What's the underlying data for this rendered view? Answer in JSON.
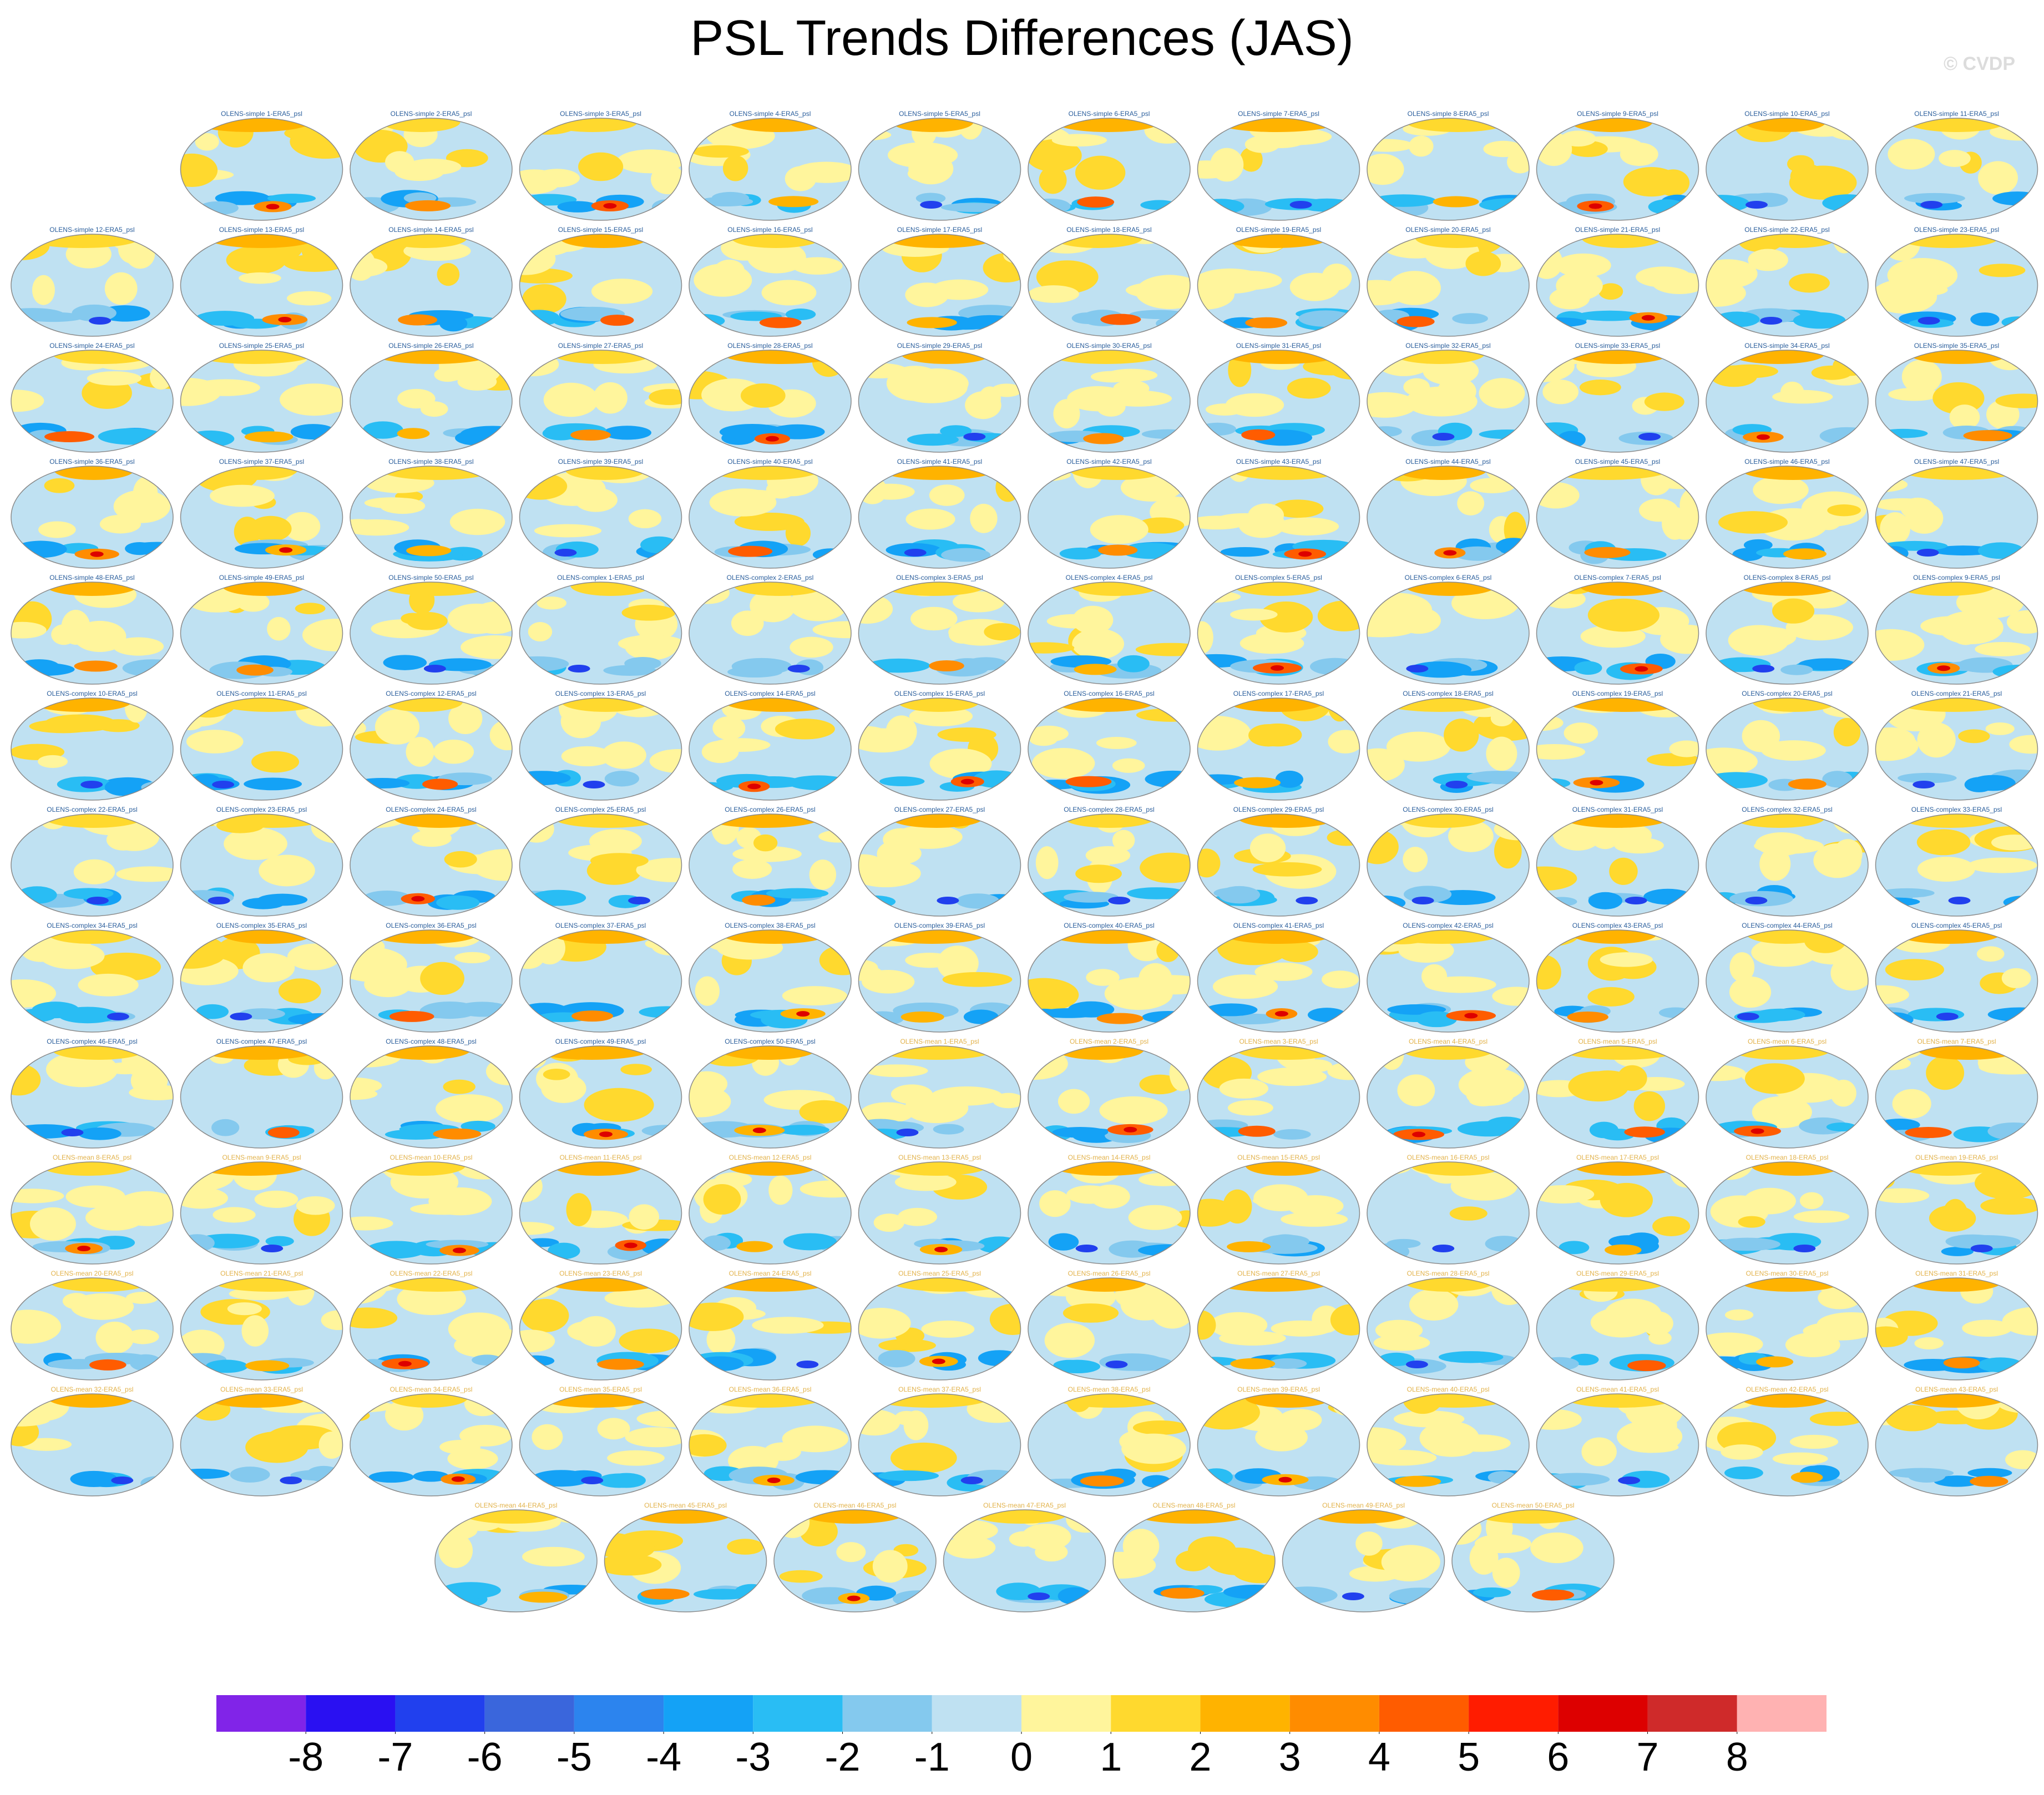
{
  "title": "PSL Trends Differences (JAS)",
  "watermark": "© CVDP",
  "panel_groups": [
    {
      "label_color": "#2a5e9c",
      "labels": [
        "OLENS-simple 1-ERA5_psl",
        "OLENS-simple 2-ERA5_psl",
        "OLENS-simple 3-ERA5_psl",
        "OLENS-simple 4-ERA5_psl",
        "OLENS-simple 5-ERA5_psl",
        "OLENS-simple 6-ERA5_psl",
        "OLENS-simple 7-ERA5_psl",
        "OLENS-simple 8-ERA5_psl",
        "OLENS-simple 9-ERA5_psl",
        "OLENS-simple 10-ERA5_psl",
        "OLENS-simple 11-ERA5_psl",
        "OLENS-simple 12-ERA5_psl",
        "OLENS-simple 13-ERA5_psl",
        "OLENS-simple 14-ERA5_psl",
        "OLENS-simple 15-ERA5_psl",
        "OLENS-simple 16-ERA5_psl",
        "OLENS-simple 17-ERA5_psl",
        "OLENS-simple 18-ERA5_psl",
        "OLENS-simple 19-ERA5_psl",
        "OLENS-simple 20-ERA5_psl",
        "OLENS-simple 21-ERA5_psl",
        "OLENS-simple 22-ERA5_psl",
        "OLENS-simple 23-ERA5_psl",
        "OLENS-simple 24-ERA5_psl",
        "OLENS-simple 25-ERA5_psl",
        "OLENS-simple 26-ERA5_psl",
        "OLENS-simple 27-ERA5_psl",
        "OLENS-simple 28-ERA5_psl",
        "OLENS-simple 29-ERA5_psl",
        "OLENS-simple 30-ERA5_psl",
        "OLENS-simple 31-ERA5_psl",
        "OLENS-simple 32-ERA5_psl",
        "OLENS-simple 33-ERA5_psl",
        "OLENS-simple 34-ERA5_psl",
        "OLENS-simple 35-ERA5_psl",
        "OLENS-simple 36-ERA5_psl",
        "OLENS-simple 37-ERA5_psl",
        "OLENS-simple 38-ERA5_psl",
        "OLENS-simple 39-ERA5_psl",
        "OLENS-simple 40-ERA5_psl",
        "OLENS-simple 41-ERA5_psl",
        "OLENS-simple 42-ERA5_psl",
        "OLENS-simple 43-ERA5_psl",
        "OLENS-simple 44-ERA5_psl",
        "OLENS-simple 45-ERA5_psl",
        "OLENS-simple 46-ERA5_psl",
        "OLENS-simple 47-ERA5_psl",
        "OLENS-simple 48-ERA5_psl",
        "OLENS-simple 49-ERA5_psl",
        "OLENS-simple 50-ERA5_psl"
      ]
    },
    {
      "label_color": "#2a5e9c",
      "labels": [
        "OLENS-complex 1-ERA5_psl",
        "OLENS-complex 2-ERA5_psl",
        "OLENS-complex 3-ERA5_psl",
        "OLENS-complex 4-ERA5_psl",
        "OLENS-complex 5-ERA5_psl",
        "OLENS-complex 6-ERA5_psl",
        "OLENS-complex 7-ERA5_psl",
        "OLENS-complex 8-ERA5_psl",
        "OLENS-complex 9-ERA5_psl",
        "OLENS-complex 10-ERA5_psl",
        "OLENS-complex 11-ERA5_psl",
        "OLENS-complex 12-ERA5_psl",
        "OLENS-complex 13-ERA5_psl",
        "OLENS-complex 14-ERA5_psl",
        "OLENS-complex 15-ERA5_psl",
        "OLENS-complex 16-ERA5_psl",
        "OLENS-complex 17-ERA5_psl",
        "OLENS-complex 18-ERA5_psl",
        "OLENS-complex 19-ERA5_psl",
        "OLENS-complex 20-ERA5_psl",
        "OLENS-complex 21-ERA5_psl",
        "OLENS-complex 22-ERA5_psl",
        "OLENS-complex 23-ERA5_psl",
        "OLENS-complex 24-ERA5_psl",
        "OLENS-complex 25-ERA5_psl",
        "OLENS-complex 26-ERA5_psl",
        "OLENS-complex 27-ERA5_psl",
        "OLENS-complex 28-ERA5_psl",
        "OLENS-complex 29-ERA5_psl",
        "OLENS-complex 30-ERA5_psl",
        "OLENS-complex 31-ERA5_psl",
        "OLENS-complex 32-ERA5_psl",
        "OLENS-complex 33-ERA5_psl",
        "OLENS-complex 34-ERA5_psl",
        "OLENS-complex 35-ERA5_psl",
        "OLENS-complex 36-ERA5_psl",
        "OLENS-complex 37-ERA5_psl",
        "OLENS-complex 38-ERA5_psl",
        "OLENS-complex 39-ERA5_psl",
        "OLENS-complex 40-ERA5_psl",
        "OLENS-complex 41-ERA5_psl",
        "OLENS-complex 42-ERA5_psl",
        "OLENS-complex 43-ERA5_psl",
        "OLENS-complex 44-ERA5_psl",
        "OLENS-complex 45-ERA5_psl",
        "OLENS-complex 46-ERA5_psl",
        "OLENS-complex 47-ERA5_psl",
        "OLENS-complex 48-ERA5_psl",
        "OLENS-complex 49-ERA5_psl",
        "OLENS-complex 50-ERA5_psl"
      ]
    },
    {
      "label_color": "#e2b24a",
      "labels": [
        "OLENS-mean 1-ERA5_psl",
        "OLENS-mean 2-ERA5_psl",
        "OLENS-mean 3-ERA5_psl",
        "OLENS-mean 4-ERA5_psl",
        "OLENS-mean 5-ERA5_psl",
        "OLENS-mean 6-ERA5_psl",
        "OLENS-mean 7-ERA5_psl",
        "OLENS-mean 8-ERA5_psl",
        "OLENS-mean 9-ERA5_psl",
        "OLENS-mean 10-ERA5_psl",
        "OLENS-mean 11-ERA5_psl",
        "OLENS-mean 12-ERA5_psl",
        "OLENS-mean 13-ERA5_psl",
        "OLENS-mean 14-ERA5_psl",
        "OLENS-mean 15-ERA5_psl",
        "OLENS-mean 16-ERA5_psl",
        "OLENS-mean 17-ERA5_psl",
        "OLENS-mean 18-ERA5_psl",
        "OLENS-mean 19-ERA5_psl",
        "OLENS-mean 20-ERA5_psl",
        "OLENS-mean 21-ERA5_psl",
        "OLENS-mean 22-ERA5_psl",
        "OLENS-mean 23-ERA5_psl",
        "OLENS-mean 24-ERA5_psl",
        "OLENS-mean 25-ERA5_psl",
        "OLENS-mean 26-ERA5_psl",
        "OLENS-mean 27-ERA5_psl",
        "OLENS-mean 28-ERA5_psl",
        "OLENS-mean 29-ERA5_psl",
        "OLENS-mean 30-ERA5_psl",
        "OLENS-mean 31-ERA5_psl",
        "OLENS-mean 32-ERA5_psl",
        "OLENS-mean 33-ERA5_psl",
        "OLENS-mean 34-ERA5_psl",
        "OLENS-mean 35-ERA5_psl",
        "OLENS-mean 36-ERA5_psl",
        "OLENS-mean 37-ERA5_psl",
        "OLENS-mean 38-ERA5_psl",
        "OLENS-mean 39-ERA5_psl",
        "OLENS-mean 40-ERA5_psl",
        "OLENS-mean 41-ERA5_psl",
        "OLENS-mean 42-ERA5_psl",
        "OLENS-mean 43-ERA5_psl",
        "OLENS-mean 44-ERA5_psl",
        "OLENS-mean 45-ERA5_psl",
        "OLENS-mean 46-ERA5_psl",
        "OLENS-mean 47-ERA5_psl",
        "OLENS-mean 48-ERA5_psl",
        "OLENS-mean 49-ERA5_psl",
        "OLENS-mean 50-ERA5_psl"
      ]
    }
  ],
  "colorbar": {
    "colors": [
      "#8124e8",
      "#2a10f2",
      "#2140ee",
      "#3a66dc",
      "#2c84ee",
      "#14a2f6",
      "#29bdf4",
      "#84c9ee",
      "#bfe1f2",
      "#fff59c",
      "#ffd92e",
      "#ffb300",
      "#ff8c00",
      "#ff5c00",
      "#ff1c00",
      "#dd0000",
      "#cf2a2a",
      "#ffb2b2"
    ],
    "ticks": [
      -8,
      -7,
      -6,
      -5,
      -4,
      -3,
      -2,
      -1,
      0,
      1,
      2,
      3,
      4,
      5,
      6,
      7,
      8
    ]
  }
}
